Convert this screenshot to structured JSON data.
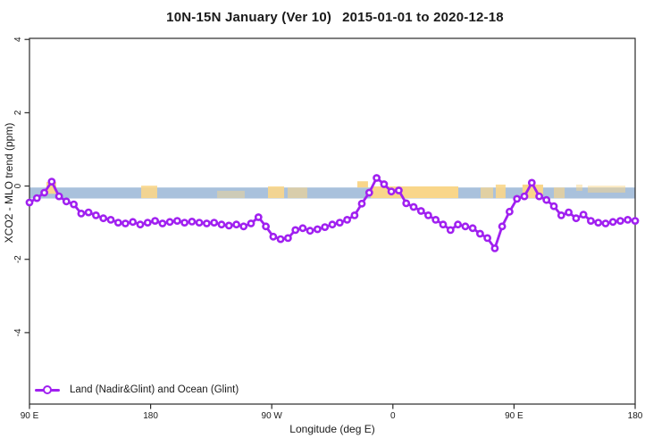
{
  "window": {
    "title_left": "10N-15N January (Ver 10)",
    "title_right": "2015-01-01 to 2020-12-18"
  },
  "colors": {
    "series_purple": "#A020F0",
    "ocean_band_blue": "#A9C1DC",
    "land_band_orange": "#F9D68A",
    "axis": "#2a2a2a",
    "background": "#ffffff"
  },
  "legend": {
    "label": "Land (Nadir&Glint) and Ocean (Glint)",
    "marker": "open-circle-on-line"
  },
  "chart_data": {
    "type": "line",
    "title": "10N-15N January (Ver 10)   2015-01-01 to 2020-12-18",
    "xlabel": "Longitude (deg E)",
    "ylabel": "XCO2 - MLO trend (ppm)",
    "xlim": [
      90,
      540
    ],
    "ylim": [
      -5.95,
      4.03
    ],
    "grid": false,
    "legend_position": "inside-bottom-left",
    "x_ticks": [
      {
        "v": 90,
        "label": "90 E"
      },
      {
        "v": 180,
        "label": "180"
      },
      {
        "v": 270,
        "label": "90 W"
      },
      {
        "v": 360,
        "label": "0"
      },
      {
        "v": 450,
        "label": "90 E"
      },
      {
        "v": 540,
        "label": "180"
      }
    ],
    "y_ticks": [
      {
        "v": 4,
        "label": "4"
      },
      {
        "v": 2,
        "label": "2"
      },
      {
        "v": 0,
        "label": "0"
      },
      {
        "v": -2,
        "label": "-2"
      },
      {
        "v": -4,
        "label": "-4"
      }
    ],
    "bands": {
      "ocean": {
        "name": "ocean-band",
        "lon": [
          90,
          540
        ],
        "ppm": [
          -0.04,
          -0.34
        ],
        "color": "#A9C1DC"
      },
      "land": [
        {
          "lon": [
            102.6,
            109.9
          ],
          "ppm": [
            0.11,
            -0.21
          ],
          "opacity": 1
        },
        {
          "lon": [
            173.0,
            184.9
          ],
          "ppm": [
            0.01,
            -0.33
          ],
          "opacity": 0.9
        },
        {
          "lon": [
            229.4,
            249.9
          ],
          "ppm": [
            -0.13,
            -0.33
          ],
          "opacity": 0.45
        },
        {
          "lon": [
            267.2,
            279.2
          ],
          "ppm": [
            -0.01,
            -0.33
          ],
          "opacity": 0.9
        },
        {
          "lon": [
            281.8,
            296.4
          ],
          "ppm": [
            -0.04,
            -0.33
          ],
          "opacity": 0.6
        },
        {
          "lon": [
            333.6,
            341.5
          ],
          "ppm": [
            0.13,
            -0.04
          ],
          "opacity": 1
        },
        {
          "lon": [
            343.5,
            408.6
          ],
          "ppm": [
            -0.01,
            -0.33
          ],
          "opacity": 1
        },
        {
          "lon": [
            425.2,
            434.5
          ],
          "ppm": [
            -0.04,
            -0.33
          ],
          "opacity": 0.7
        },
        {
          "lon": [
            436.4,
            443.7
          ],
          "ppm": [
            0.04,
            -0.33
          ],
          "opacity": 0.9
        },
        {
          "lon": [
            456.3,
            471.6
          ],
          "ppm": [
            0.04,
            -0.33
          ],
          "opacity": 1
        },
        {
          "lon": [
            479.6,
            487.6
          ],
          "ppm": [
            -0.04,
            -0.33
          ],
          "opacity": 0.65
        },
        {
          "lon": [
            496.2,
            500.8
          ],
          "ppm": [
            0.04,
            -0.13
          ],
          "opacity": 0.5
        },
        {
          "lon": [
            504.8,
            532.7
          ],
          "ppm": [
            0.01,
            -0.18
          ],
          "opacity": 0.5
        }
      ]
    },
    "series": [
      {
        "name": "Land (Nadir&Glint) and Ocean (Glint)",
        "color": "#A020F0",
        "marker": "open-circle",
        "x": [
          90,
          95.5,
          101,
          106.5,
          112,
          117.4,
          122.9,
          128.4,
          133.9,
          139.4,
          144.9,
          150.4,
          155.9,
          161.3,
          166.8,
          172.3,
          177.8,
          183.3,
          188.8,
          194.3,
          199.8,
          205.2,
          210.7,
          216.2,
          221.7,
          227.2,
          232.7,
          238.2,
          243.7,
          249.1,
          254.6,
          260.1,
          265.6,
          271.1,
          276.6,
          282.1,
          287.6,
          293,
          298.5,
          304,
          309.5,
          315,
          320.5,
          326,
          331.5,
          336.9,
          342.4,
          347.9,
          353.4,
          358.9,
          364.4,
          369.9,
          375.4,
          380.9,
          386.3,
          391.8,
          397.3,
          402.8,
          408.3,
          413.8,
          419.3,
          424.8,
          430.2,
          435.7,
          441.2,
          446.7,
          452.2,
          457.7,
          463.2,
          468.7,
          474.1,
          479.6,
          485.1,
          490.6,
          496.1,
          501.6,
          507.1,
          512.6,
          518,
          523.5,
          529,
          534.5,
          540
        ],
        "y": [
          -0.45,
          -0.33,
          -0.18,
          0.12,
          -0.28,
          -0.42,
          -0.5,
          -0.75,
          -0.72,
          -0.8,
          -0.88,
          -0.92,
          -1,
          -1.02,
          -0.98,
          -1.05,
          -1,
          -0.95,
          -1.02,
          -0.98,
          -0.95,
          -1,
          -0.97,
          -1,
          -1.02,
          -1,
          -1.05,
          -1.08,
          -1.05,
          -1.1,
          -1.02,
          -0.85,
          -1.1,
          -1.38,
          -1.45,
          -1.42,
          -1.2,
          -1.15,
          -1.22,
          -1.18,
          -1.12,
          -1.05,
          -1,
          -0.92,
          -0.8,
          -0.48,
          -0.18,
          0.22,
          0.05,
          -0.15,
          -0.12,
          -0.47,
          -0.57,
          -0.68,
          -0.8,
          -0.92,
          -1.05,
          -1.2,
          -1.05,
          -1.1,
          -1.15,
          -1.3,
          -1.42,
          -1.7,
          -1.1,
          -0.7,
          -0.35,
          -0.28,
          0.09,
          -0.28,
          -0.38,
          -0.55,
          -0.8,
          -0.72,
          -0.88,
          -0.78,
          -0.95,
          -1,
          -1.02,
          -0.98,
          -0.95,
          -0.92,
          -0.95
        ]
      }
    ]
  }
}
